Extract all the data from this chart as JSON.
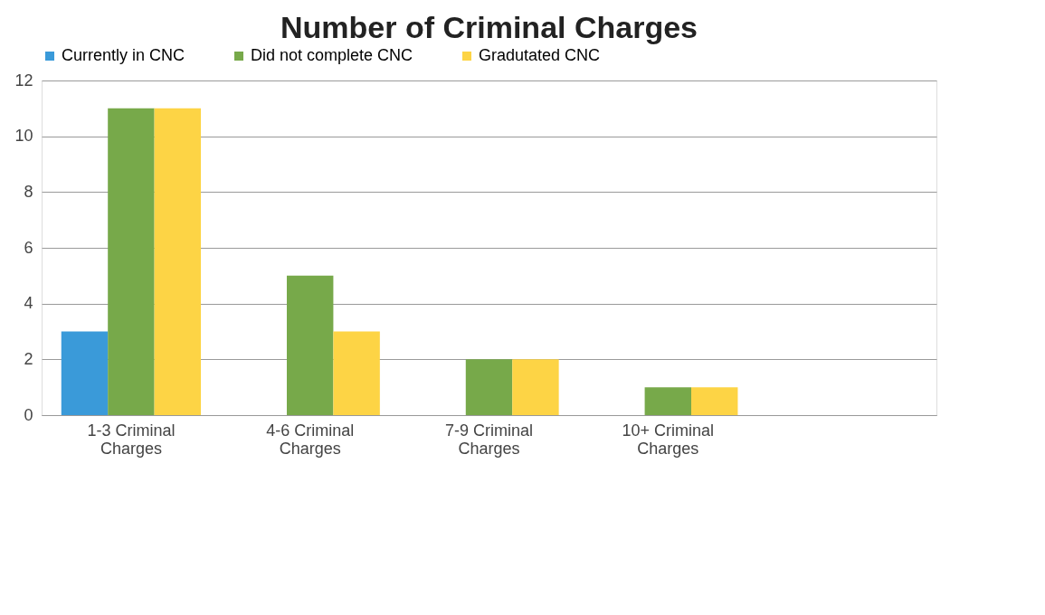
{
  "chart_data": {
    "type": "bar",
    "title": "Number of Criminal Charges",
    "categories": [
      "1-3 Criminal Charges",
      "4-6 Criminal Charges",
      "7-9 Criminal Charges",
      "10+ Criminal Charges",
      null
    ],
    "series": [
      {
        "name": "Currently in CNC",
        "color": "#3a9ad9",
        "values": [
          3,
          0,
          0,
          0,
          null
        ]
      },
      {
        "name": "Did not complete CNC",
        "color": "#77a94a",
        "values": [
          11,
          5,
          2,
          1,
          null
        ]
      },
      {
        "name": "Gradutated CNC",
        "color": "#fdd445",
        "values": [
          11,
          3,
          2,
          1,
          null
        ]
      }
    ],
    "ylim": [
      0,
      12
    ],
    "yticks": [
      0,
      2,
      4,
      6,
      8,
      10,
      12
    ],
    "grid": "y",
    "legend": "top"
  }
}
